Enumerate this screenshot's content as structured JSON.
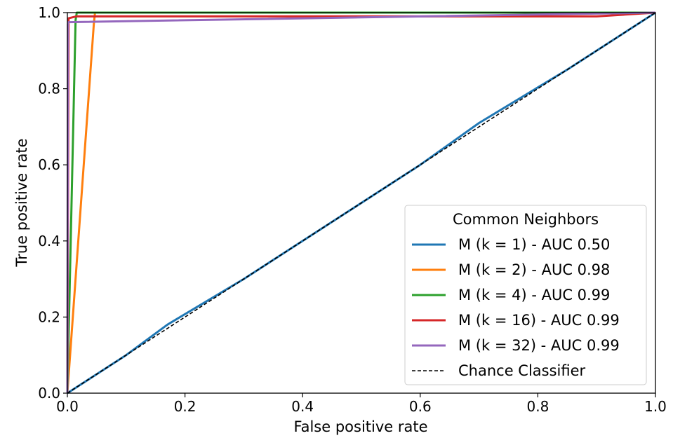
{
  "chart_data": {
    "type": "line",
    "title": "",
    "xlabel": "False positive rate",
    "ylabel": "True positive rate",
    "xlim": [
      0.0,
      1.0
    ],
    "ylim": [
      0.0,
      1.0
    ],
    "xticks": [
      "0.0",
      "0.2",
      "0.4",
      "0.6",
      "0.8",
      "1.0"
    ],
    "yticks": [
      "0.0",
      "0.2",
      "0.4",
      "0.6",
      "0.8",
      "1.0"
    ],
    "grid": false,
    "legend": {
      "title": "Common Neighbors",
      "placement": "lower-right"
    },
    "series": [
      {
        "name": "M (k = 1) - AUC 0.50",
        "color": "#1f77b4",
        "x": [
          0.0,
          0.05,
          0.1,
          0.17,
          0.3,
          0.47,
          0.6,
          0.7,
          0.85,
          1.0
        ],
        "y": [
          0.0,
          0.05,
          0.1,
          0.18,
          0.3,
          0.47,
          0.6,
          0.71,
          0.85,
          1.0
        ]
      },
      {
        "name": "M (k = 2) - AUC 0.98",
        "color": "#ff7f0e",
        "x": [
          0.0,
          0.045,
          0.047,
          1.0
        ],
        "y": [
          0.0,
          0.97,
          1.0,
          1.0
        ]
      },
      {
        "name": "M (k = 4) - AUC 0.99",
        "color": "#2ca02c",
        "x": [
          0.0,
          0.014,
          0.016,
          1.0
        ],
        "y": [
          0.0,
          0.98,
          1.0,
          1.0
        ]
      },
      {
        "name": "M (k = 16) - AUC 0.99",
        "color": "#d62728",
        "x": [
          0.0,
          0.002,
          0.015,
          0.9,
          1.0
        ],
        "y": [
          0.0,
          0.985,
          0.99,
          0.99,
          1.0
        ]
      },
      {
        "name": "M (k = 32) - AUC 0.99",
        "color": "#9467bd",
        "x": [
          0.0,
          0.001,
          0.002,
          1.0
        ],
        "y": [
          0.0,
          0.97,
          0.975,
          1.0
        ]
      },
      {
        "name": "Chance Classifier",
        "color": "#000000",
        "dashed": true,
        "x": [
          0.0,
          1.0
        ],
        "y": [
          0.0,
          1.0
        ]
      }
    ]
  }
}
